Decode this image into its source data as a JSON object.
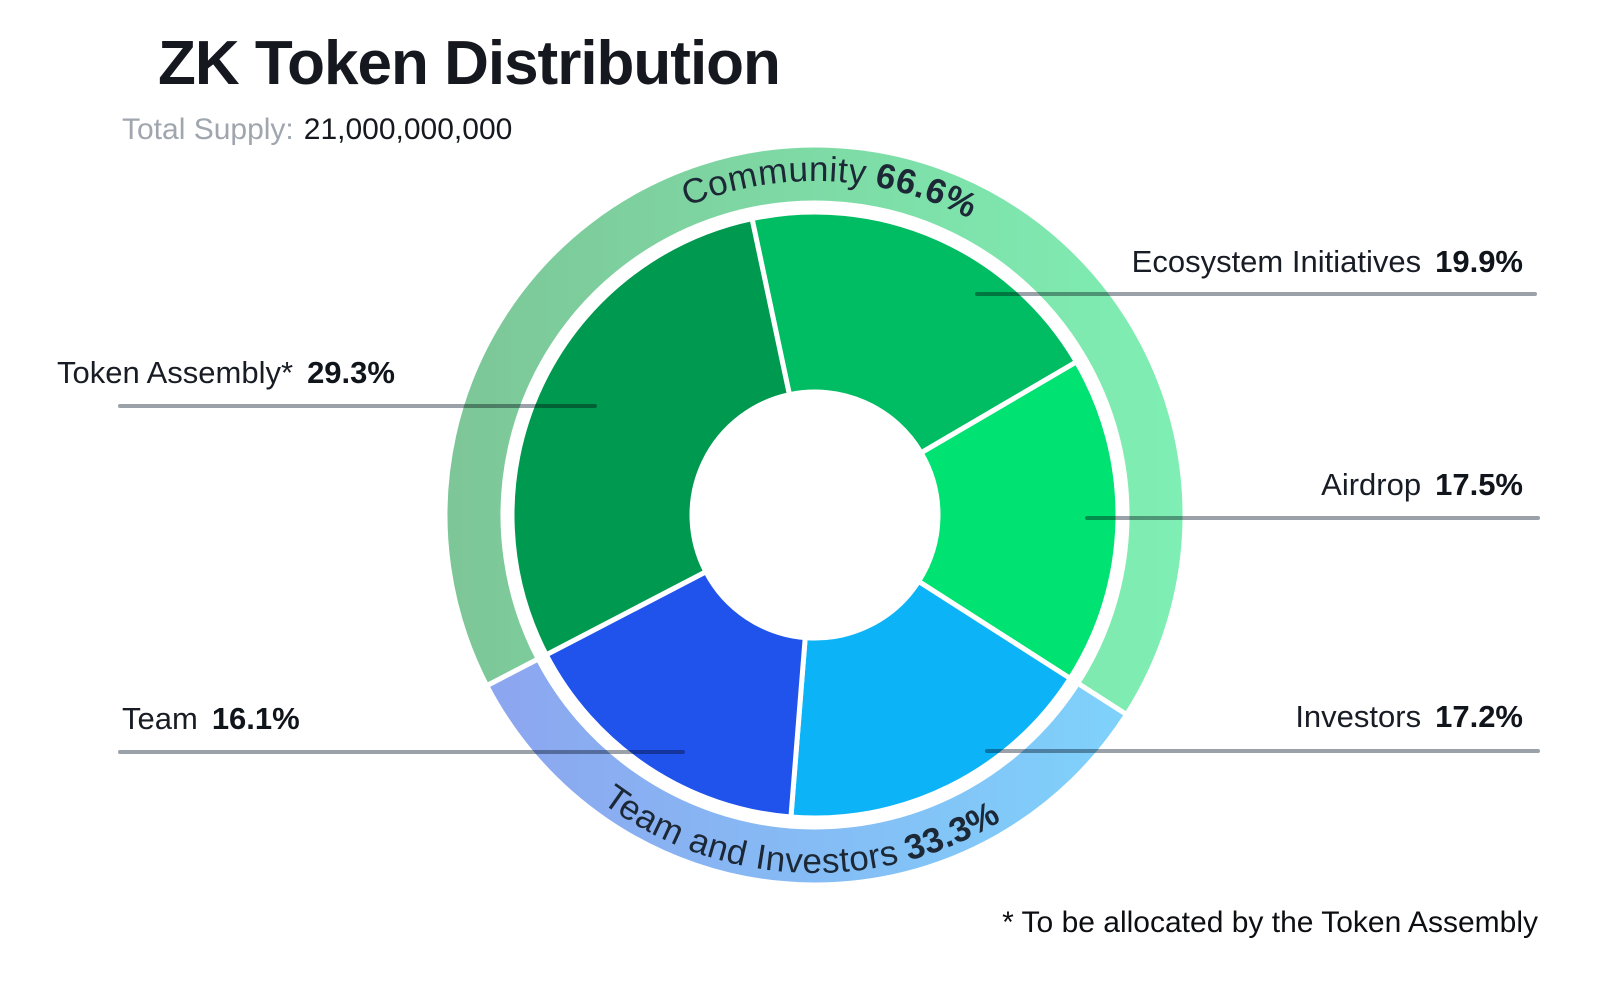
{
  "header": {
    "title": "ZK Token Distribution",
    "supply_label": "Total Supply:",
    "supply_value": "21,000,000,000"
  },
  "callouts": {
    "token_assembly": {
      "label": "Token Assembly*",
      "pct": "29.3%"
    },
    "team": {
      "label": "Team",
      "pct": "16.1%"
    },
    "ecosystem": {
      "label": "Ecosystem Initiatives",
      "pct": "19.9%"
    },
    "airdrop": {
      "label": "Airdrop",
      "pct": "17.5%"
    },
    "investors": {
      "label": "Investors",
      "pct": "17.2%"
    }
  },
  "footnote": "* To be allocated by the Token Assembly",
  "colors": {
    "title_text": "#15181e",
    "muted_text": "#9fa6ae",
    "leader_line": "#9aa1a8",
    "curved_label_text": "#1c2836",
    "segment_gap": "#ffffff"
  },
  "chart_data": {
    "type": "pie",
    "subtype": "donut-sunburst",
    "title": "ZK Token Distribution",
    "total_supply": "21,000,000,000",
    "units": "%",
    "rotation_deg": -12,
    "legend_position": "callouts",
    "inner_segments": [
      {
        "label": "Ecosystem Initiatives",
        "value": 19.9,
        "color": "#00bc62",
        "group": "Community"
      },
      {
        "label": "Airdrop",
        "value": 17.5,
        "color": "#00e272",
        "group": "Community"
      },
      {
        "label": "Investors",
        "value": 17.2,
        "color": "#0cb4f7",
        "group": "Team and Investors"
      },
      {
        "label": "Team",
        "value": 16.1,
        "color": "#2053ec",
        "group": "Team and Investors"
      },
      {
        "label": "Token Assembly*",
        "value": 29.3,
        "color": "#009950",
        "group": "Community"
      }
    ],
    "outer_segments": [
      {
        "label": "Community",
        "value": 66.6,
        "color_start": "#7dc697",
        "color_end": "#7fefb4"
      },
      {
        "label": "Team and Investors",
        "value": 33.3,
        "color_start": "#8ca6ef",
        "color_end": "#7ed3fb"
      }
    ]
  }
}
